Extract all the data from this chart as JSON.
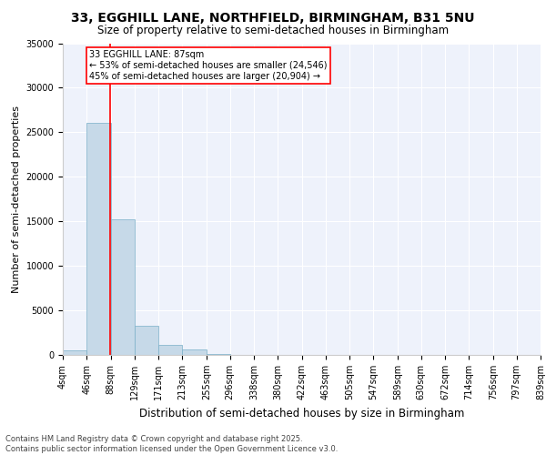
{
  "title_line1": "33, EGGHILL LANE, NORTHFIELD, BIRMINGHAM, B31 5NU",
  "title_line2": "Size of property relative to semi-detached houses in Birmingham",
  "xlabel": "Distribution of semi-detached houses by size in Birmingham",
  "ylabel": "Number of semi-detached properties",
  "annotation_title": "33 EGGHILL LANE: 87sqm",
  "annotation_line2": "← 53% of semi-detached houses are smaller (24,546)",
  "annotation_line3": "45% of semi-detached houses are larger (20,904) →",
  "footer_line1": "Contains HM Land Registry data © Crown copyright and database right 2025.",
  "footer_line2": "Contains public sector information licensed under the Open Government Licence v3.0.",
  "bin_edges": [
    4,
    46,
    88,
    129,
    171,
    213,
    255,
    296,
    338,
    380,
    422,
    463,
    505,
    547,
    589,
    630,
    672,
    714,
    756,
    797,
    839
  ],
  "bar_heights": [
    500,
    26100,
    15200,
    3300,
    1150,
    600,
    100,
    50,
    20,
    10,
    5,
    3,
    2,
    2,
    1,
    1,
    1,
    1,
    1,
    1
  ],
  "bar_color": "#c6d9e8",
  "bar_edge_color": "#7aafc8",
  "red_line_x": 87,
  "ylim": [
    0,
    35000
  ],
  "yticks": [
    0,
    5000,
    10000,
    15000,
    20000,
    25000,
    30000,
    35000
  ],
  "background_color": "#eef2fb",
  "grid_color": "#ffffff",
  "title_fontsize": 10,
  "subtitle_fontsize": 8.5,
  "axis_label_fontsize": 8,
  "tick_fontsize": 7,
  "footer_fontsize": 6
}
